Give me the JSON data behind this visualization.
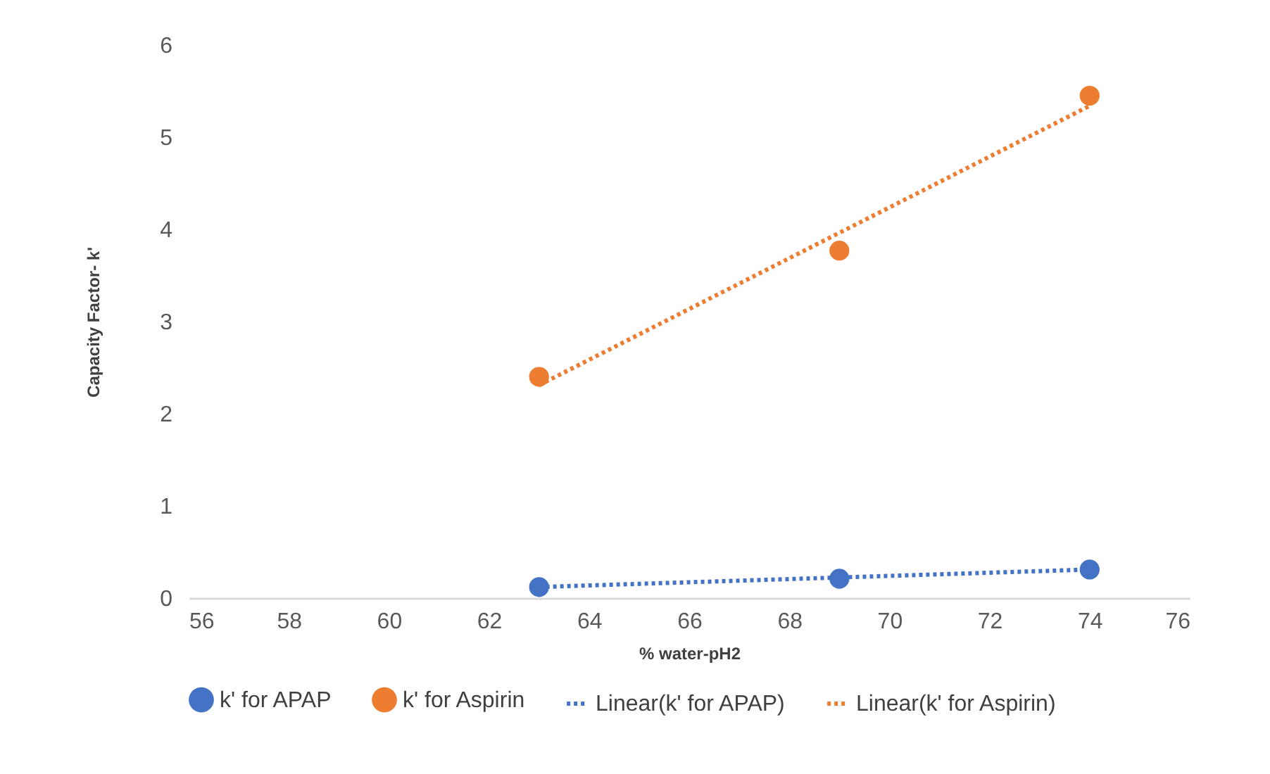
{
  "chart_data": {
    "type": "scatter",
    "xlabel": "% water-pH2",
    "ylabel": "Capacity Factor- k'",
    "xlim": [
      56,
      76
    ],
    "xticks": [
      56,
      58,
      60,
      62,
      64,
      66,
      68,
      70,
      72,
      74,
      76
    ],
    "ylim": [
      0,
      6
    ],
    "yticks": [
      0,
      1,
      2,
      3,
      4,
      5,
      6
    ],
    "grid": false,
    "legend": "bottom",
    "series": [
      {
        "marker": "circle",
        "name": "k' for APAP",
        "color": "#4472c4",
        "x": [
          63,
          69,
          74
        ],
        "values": [
          0.12,
          0.21,
          0.31
        ]
      },
      {
        "marker": "circle",
        "name": "k' for Aspirin",
        "color": "#ed7d31",
        "x": [
          63,
          69,
          74
        ],
        "values": [
          2.4,
          3.77,
          5.45
        ]
      },
      {
        "type": "line",
        "name": "Linear(k' for APAP)",
        "color": "#4472c4",
        "line_style": "dotted",
        "x": [
          63,
          74
        ],
        "values": [
          0.12,
          0.31
        ]
      },
      {
        "type": "line",
        "name": "Linear(k' for Aspirin)",
        "color": "#ed7d31",
        "line_style": "dotted",
        "x": [
          63,
          74
        ],
        "values": [
          2.31,
          5.34
        ]
      }
    ]
  }
}
